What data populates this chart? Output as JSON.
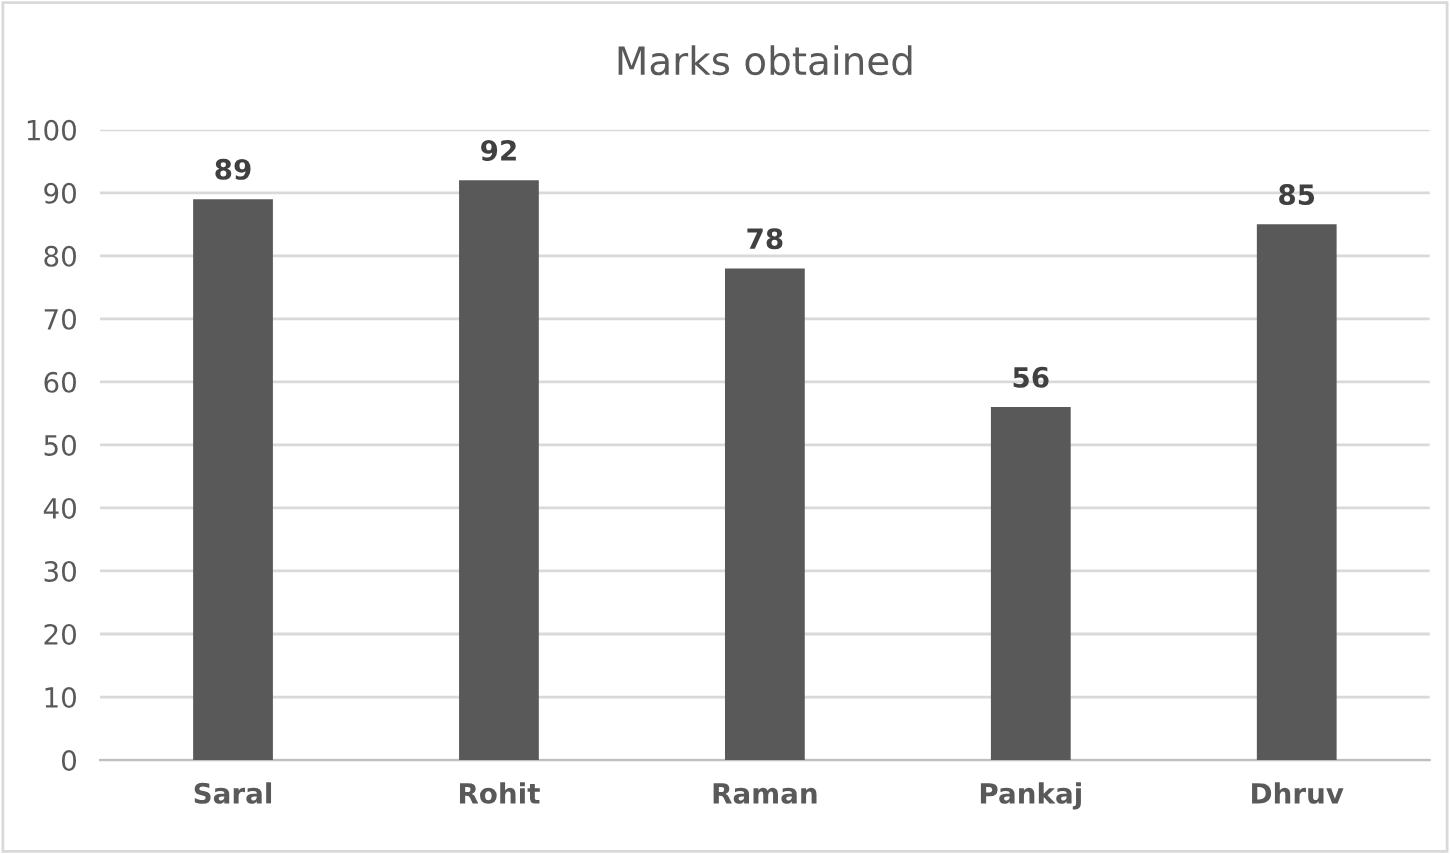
{
  "chart_data": {
    "type": "bar",
    "title": "Marks obtained",
    "categories": [
      "Saral",
      "Rohit",
      "Raman",
      "Pankaj",
      "Dhruv"
    ],
    "values": [
      89,
      92,
      78,
      56,
      85
    ],
    "color": "#595959",
    "ylim": [
      0,
      100
    ],
    "yticks": [
      0,
      10,
      20,
      30,
      40,
      50,
      60,
      70,
      80,
      90,
      100
    ],
    "grid": "y",
    "data_labels": true,
    "legend": false
  }
}
